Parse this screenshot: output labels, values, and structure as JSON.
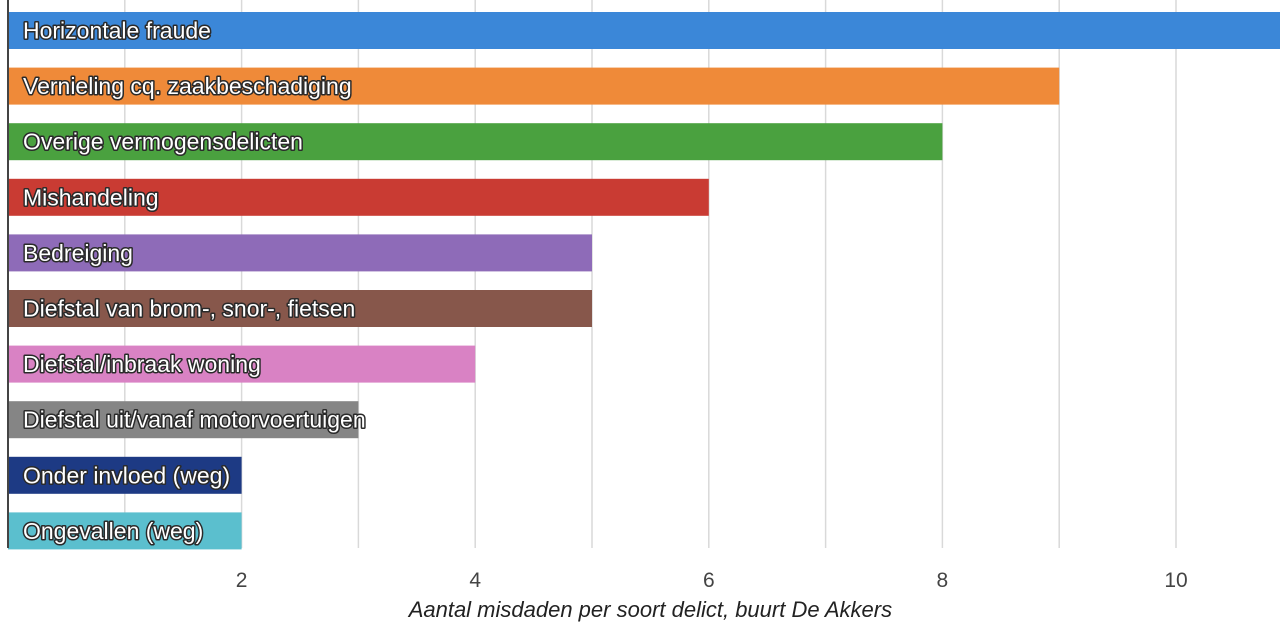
{
  "chart_data": {
    "type": "bar",
    "orientation": "horizontal",
    "title": "",
    "xlabel": "Aantal misdaden per soort delict, buurt De Akkers",
    "ylabel": "",
    "xlim": [
      0,
      11
    ],
    "xticks": [
      2,
      4,
      6,
      8,
      10
    ],
    "grid": true,
    "categories": [
      "Horizontale fraude",
      "Vernieling cq. zaakbeschadiging",
      "Overige vermogensdelicten",
      "Mishandeling",
      "Bedreiging",
      "Diefstal van brom-, snor-, fietsen",
      "Diefstal/inbraak woning",
      "Diefstal uit/vanaf motorvoertuigen",
      "Onder invloed (weg)",
      "Ongevallen (weg)"
    ],
    "values": [
      11,
      9,
      8,
      6,
      5,
      5,
      4,
      3,
      2,
      2
    ],
    "colors": [
      "#3b87d8",
      "#ef8a39",
      "#4aa13f",
      "#c93b33",
      "#8e6bb8",
      "#87574b",
      "#d982c4",
      "#858585",
      "#1d3a84",
      "#5bbfce"
    ]
  }
}
